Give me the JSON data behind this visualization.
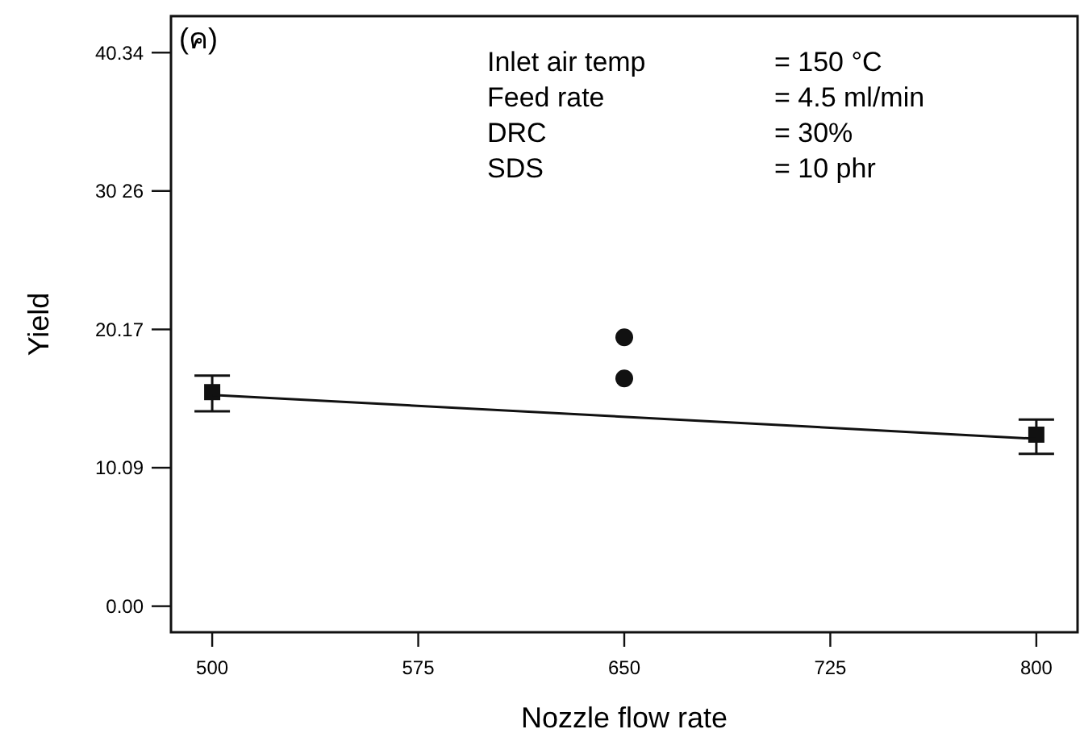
{
  "chart_data": {
    "type": "scatter",
    "xlabel": "Nozzle flow rate",
    "ylabel": "Yield",
    "annotations": [
      "(ค)",
      "Inlet air temp",
      "= 150 °C",
      "Feed rate",
      "= 4.5 ml/min",
      "DRC",
      "= 30%",
      "SDS",
      "= 10 phr"
    ],
    "xlim": [
      485,
      815
    ],
    "xticks": [
      500,
      575,
      650,
      725,
      800
    ],
    "ylim": [
      -1.9,
      43
    ],
    "yticks": [
      {
        "value": 40.34,
        "label": "40.34"
      },
      {
        "value": 30.26,
        "label": "30 26"
      },
      {
        "value": 20.17,
        "label": "20.17"
      },
      {
        "value": 10.09,
        "label": "10.09"
      },
      {
        "value": 0,
        "label": "0.00"
      }
    ],
    "grid": false,
    "series": [
      {
        "marker": "square",
        "color": "#111111",
        "x": [
          500,
          800
        ],
        "values": [
          15.6,
          12.5
        ],
        "errors": [
          [
            14.2,
            16.8
          ],
          [
            11.1,
            13.6
          ]
        ]
      },
      {
        "marker": "circle",
        "color": "#111111",
        "x": [
          650,
          650
        ],
        "values": [
          19.6,
          16.6
        ]
      },
      {
        "type": "line",
        "marker": "none",
        "line_style": "solid",
        "color": "#111111",
        "x": [
          500,
          800
        ],
        "values": [
          15.4,
          12.2
        ]
      }
    ]
  }
}
